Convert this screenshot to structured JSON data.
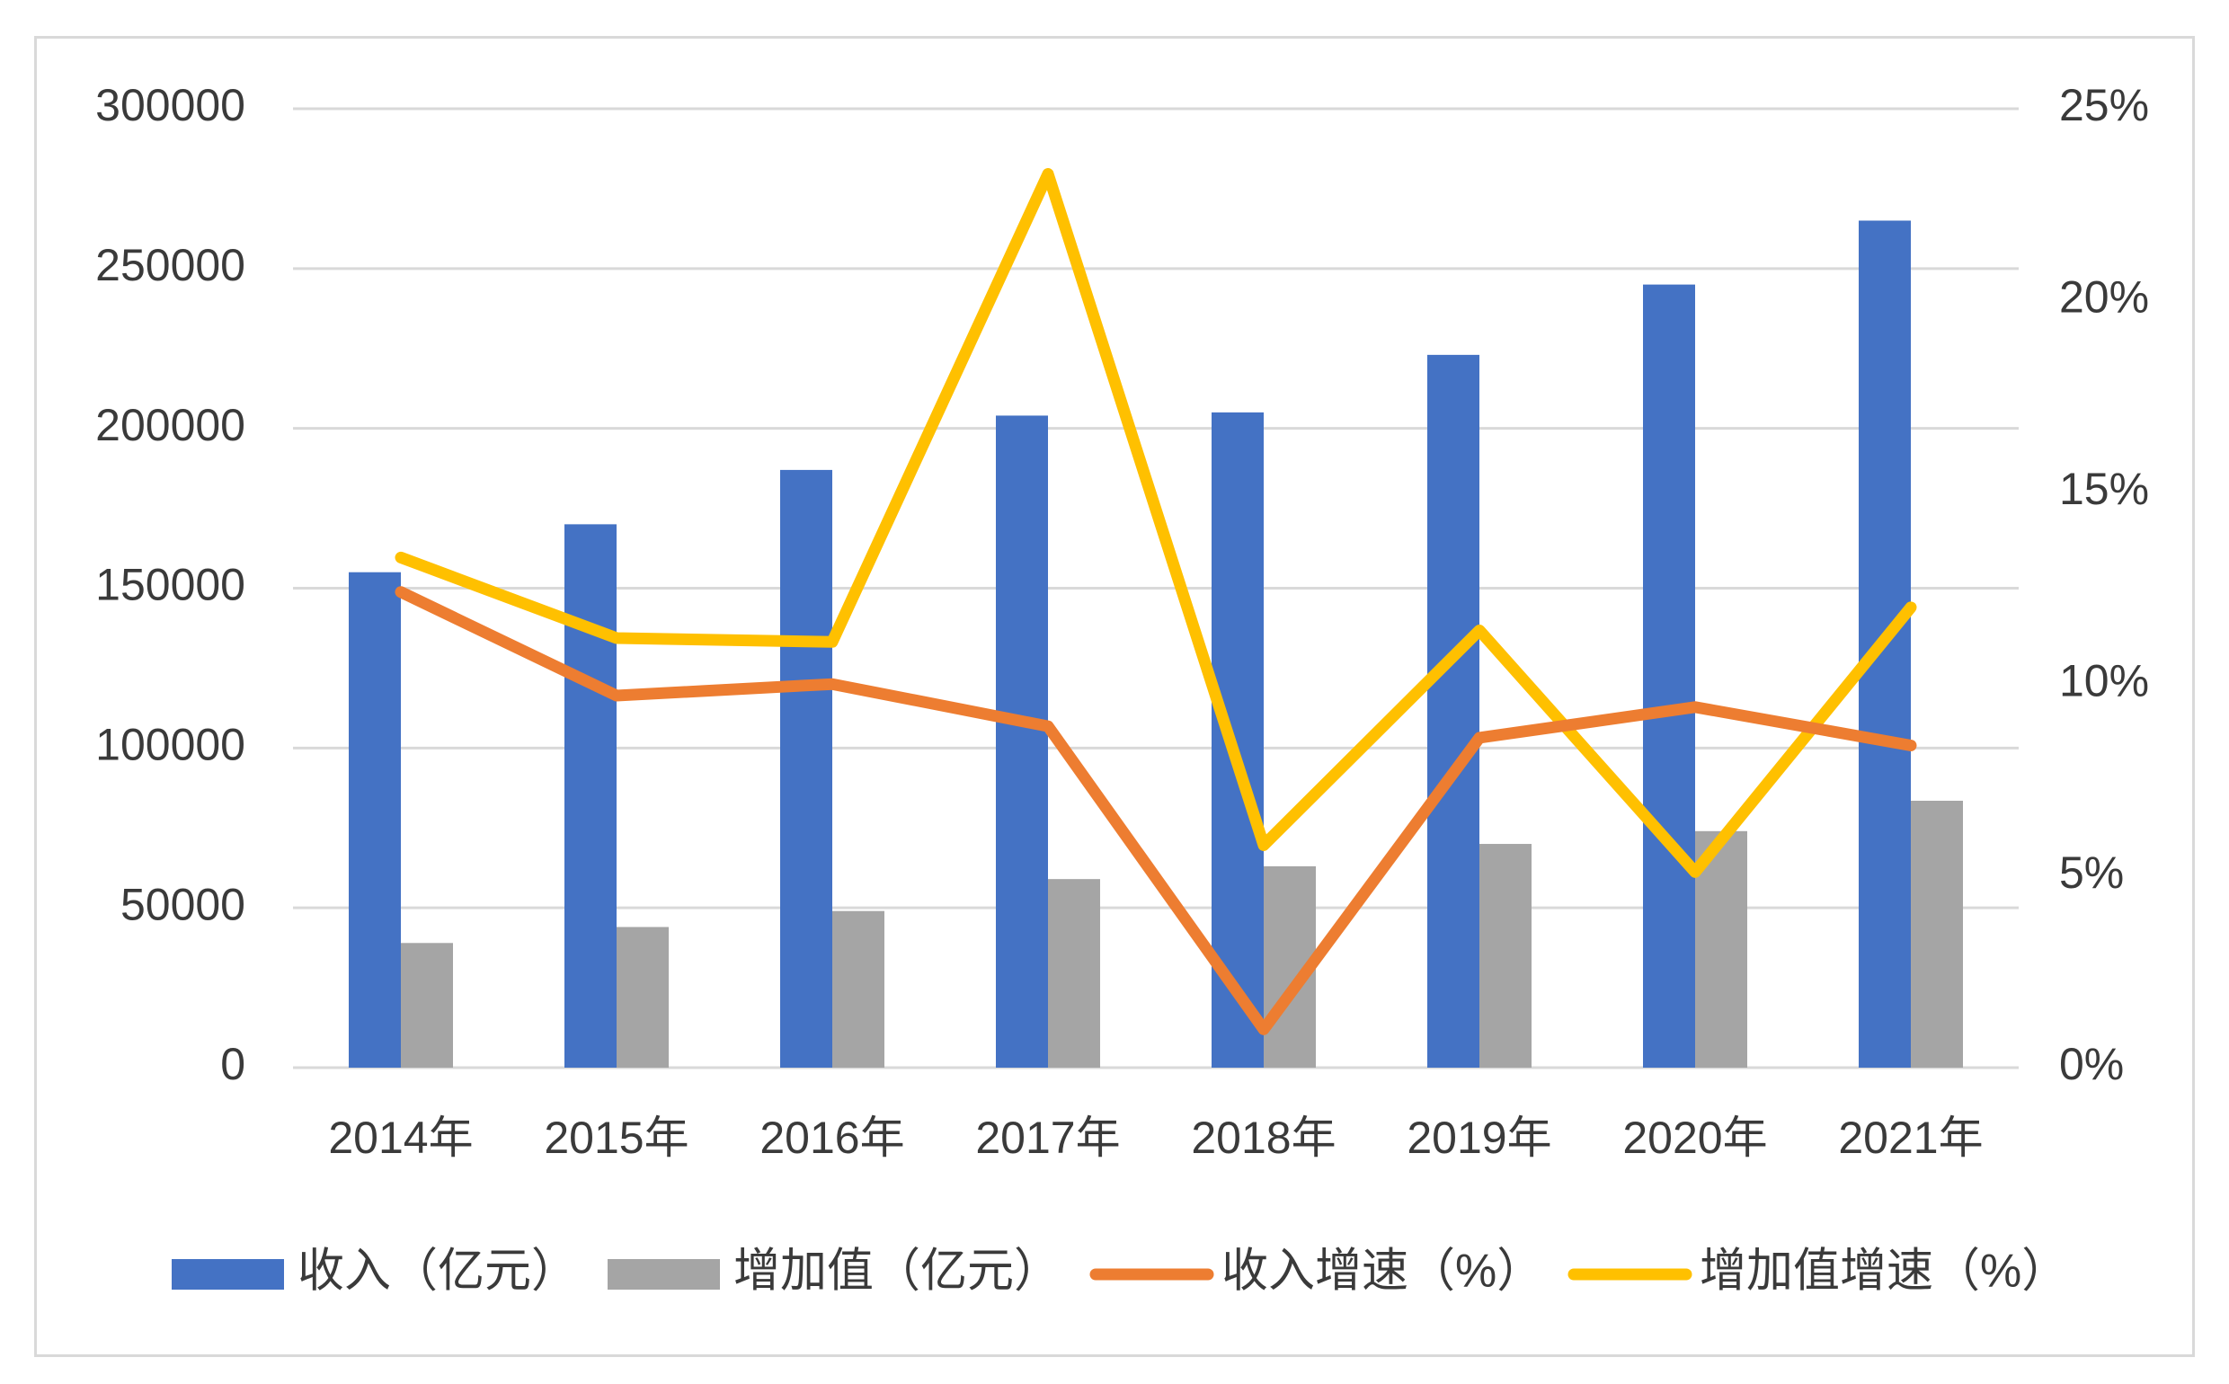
{
  "chart_data": {
    "type": "bar",
    "title": "",
    "categories": [
      "2014年",
      "2015年",
      "2016年",
      "2017年",
      "2018年",
      "2019年",
      "2020年",
      "2021年"
    ],
    "series": [
      {
        "name": "收入（亿元）",
        "type": "bar",
        "axis": "left",
        "color": "#4472c4",
        "values": [
          155000,
          170000,
          187000,
          204000,
          205000,
          223000,
          245000,
          265000
        ]
      },
      {
        "name": "增加值（亿元）",
        "type": "bar",
        "axis": "left",
        "color": "#a5a5a5",
        "values": [
          39000,
          44000,
          49000,
          59000,
          63000,
          70000,
          74000,
          83500
        ]
      },
      {
        "name": "收入增速（%）",
        "type": "line",
        "axis": "right",
        "color": "#ed7d31",
        "values": [
          12.4,
          9.7,
          10.0,
          8.9,
          1.0,
          8.6,
          9.4,
          8.4
        ]
      },
      {
        "name": "增加值增速（%）",
        "type": "line",
        "axis": "right",
        "color": "#ffc000",
        "values": [
          13.3,
          11.2,
          11.1,
          23.3,
          5.8,
          11.4,
          5.1,
          12.0
        ]
      }
    ],
    "y_left": {
      "min": 0,
      "max": 300000,
      "ticks": [
        "0",
        "50000",
        "100000",
        "150000",
        "200000",
        "250000",
        "300000"
      ]
    },
    "y_right": {
      "min": 0,
      "max": 25,
      "ticks": [
        "0%",
        "5%",
        "10%",
        "15%",
        "20%",
        "25%"
      ]
    },
    "grid": true,
    "legend_position": "bottom"
  }
}
